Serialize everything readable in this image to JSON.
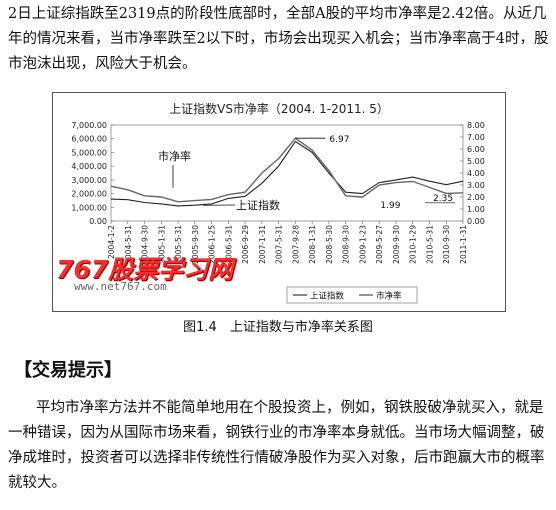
{
  "text": {
    "para1": "2日上证综指跌至2319点的阶段性底部时，全部A股的平均市净率是2.42倍。从近几年的情况来看，当市净率跌至2以下时，市场会出现买入机会；当市净率高于4时，股市泡沫出现，风险大于机会。",
    "caption": "图1.4　上证指数与市净率关系图",
    "section_title": "【交易提示】",
    "para2": "平均市净率方法并不能简单地用在个股投资上，例如，钢铁股破净就买入，就是一种错误，因为从国际市场来看，钢铁行业的市净率本身就低。当市场大幅调整，破净成堆时，投资者可以选择非传统性行情破净股作为买入对象，后市跑赢大市的概率就较大。"
  },
  "watermark": {
    "brand": "767股票学习网",
    "url": "www.net767.com",
    "color": "#ff2a2a"
  },
  "chart_data": {
    "type": "line",
    "title": "上证指数VS市净率（2004. 1-2011. 5）",
    "left_ticks": [
      "7,000.00",
      "6,000.00",
      "5,000.00",
      "4,000.00",
      "3,000.00",
      "2,000.00",
      "1,000.00",
      "0.00"
    ],
    "right_ticks": [
      "8.00",
      "7.00",
      "6.00",
      "5.00",
      "4.00",
      "3.00",
      "2.00",
      "1.00",
      "0.00"
    ],
    "x_ticks": [
      "2004-1-2",
      "2004-5-31",
      "2004-9-30",
      "2005-1-31",
      "2005-5-31",
      "2005-9-30",
      "2006-1-25",
      "2006-5-31",
      "2006-9-29",
      "2007-1-31",
      "2007-5-31",
      "2007-9-28",
      "2008-1-31",
      "2008-5-30",
      "2008-9-30",
      "2009-1-23",
      "2009-5-27",
      "2009-9-30",
      "2010-1-29",
      "2010-5-31",
      "2010-9-30",
      "2011-1-31"
    ],
    "ylim_left": [
      0,
      7000
    ],
    "ylim_right": [
      0,
      8
    ],
    "annotations": {
      "series_label_pb": "市净率",
      "series_label_index": "上证指数",
      "peak": "6.97",
      "low": "1.99",
      "end": "2.35"
    },
    "legend": {
      "position": "bottom-right",
      "items": [
        "上证指数",
        "市净率"
      ]
    },
    "series": [
      {
        "name": "上证指数",
        "values": [
          1600,
          1550,
          1350,
          1250,
          1100,
          1150,
          1250,
          1650,
          1800,
          2750,
          4000,
          5800,
          5000,
          3500,
          2100,
          2000,
          2800,
          3000,
          3200,
          2900,
          2650,
          2900
        ]
      },
      {
        "name": "市净率",
        "values": [
          2.9,
          2.6,
          2.1,
          2.0,
          1.6,
          1.7,
          1.8,
          2.2,
          2.4,
          4.0,
          5.2,
          6.9,
          5.9,
          4.2,
          2.1,
          1.99,
          3.0,
          3.2,
          3.3,
          2.8,
          2.3,
          2.35
        ]
      }
    ]
  }
}
